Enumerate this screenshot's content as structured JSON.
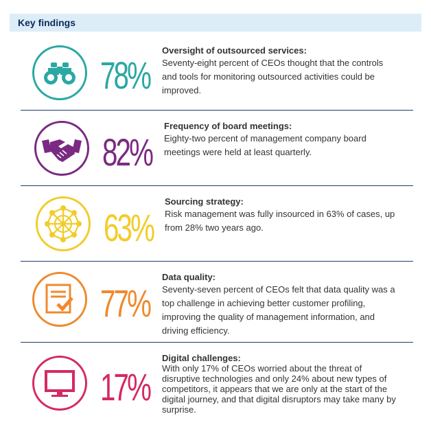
{
  "header": {
    "title": "Key findings"
  },
  "colors": {
    "teal": "#2aa8a3",
    "purple": "#7b2a83",
    "yellow": "#f2cc2a",
    "orange": "#ef8a2e",
    "pink": "#d42a62"
  },
  "findings": [
    {
      "icon": "binoculars-icon",
      "percent": "78%",
      "title": "Oversight of outsourced services:",
      "lines": [
        "Seventy-eight percent of CEOs thought that the controls",
        "and tools for monitoring outsourced activities could be",
        "improved."
      ]
    },
    {
      "icon": "handshake-icon",
      "percent": "82%",
      "title": "Frequency of board meetings:",
      "lines": [
        "Eighty-two percent of management company board",
        "meetings were held at least quarterly."
      ]
    },
    {
      "icon": "network-icon",
      "percent": "63%",
      "title": "Sourcing strategy:",
      "lines": [
        "Risk management was fully insourced in 63% of cases, up",
        "from 28% two years ago."
      ]
    },
    {
      "icon": "checklist-icon",
      "percent": "77%",
      "title": "Data quality:",
      "lines": [
        "Seventy-seven percent of CEOs felt that data quality was a",
        "top challenge in achieving better customer profiling,",
        "improving the quality of management information, and",
        "driving efficiency."
      ]
    },
    {
      "icon": "monitor-icon",
      "percent": "17%",
      "title": "Digital challenges:",
      "lines": [
        "With only 17% of CEOs worried about the threat of",
        "disruptive technologies and only 24% about new types of",
        "competitors, it appears that we are only at the start of the",
        "digital journey, and that digital disruptors may take many by",
        "surprise."
      ]
    }
  ]
}
